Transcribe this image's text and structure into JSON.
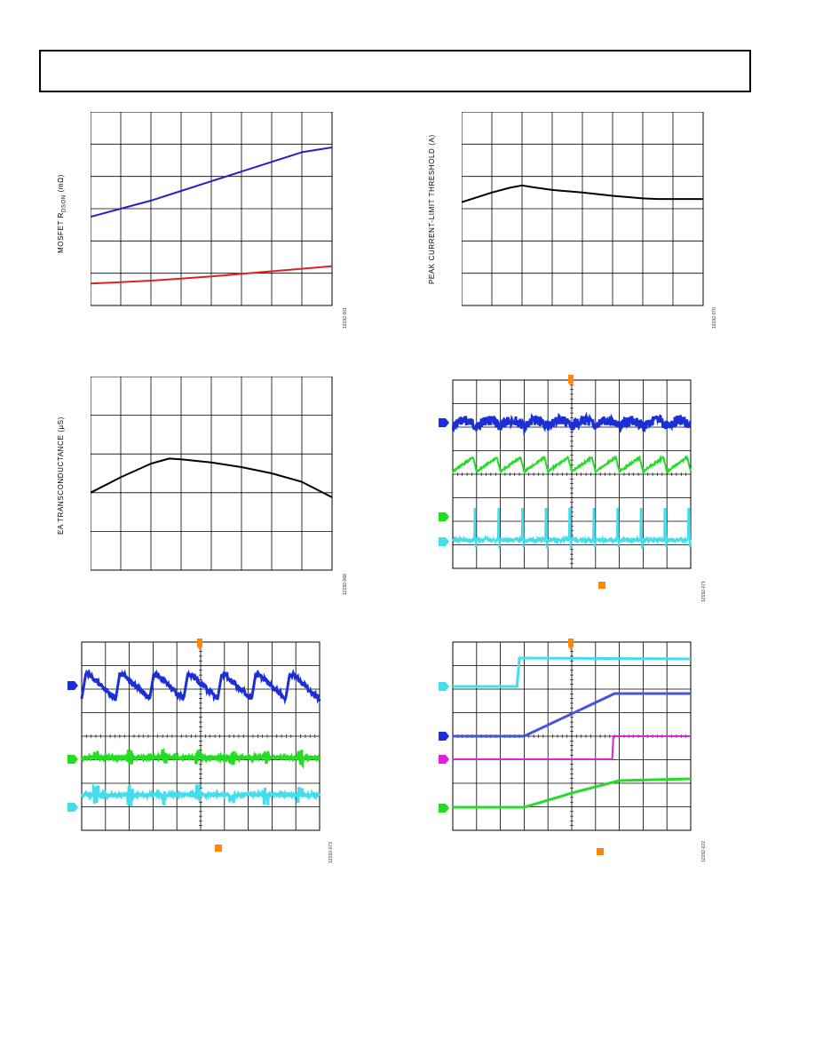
{
  "colors": {
    "blue": "#2222cc",
    "red": "#dd2222",
    "black": "#000000",
    "green": "#22dd22",
    "cyan": "#44ddee",
    "magenta": "#dd22dd",
    "orange": "#ff8800",
    "osc_blue": "#1a2fd6",
    "osc_blue2": "#4455dd"
  },
  "figures": {
    "rdson_ylabel_main": "MOSFET R",
    "rdson_ylabel_sub": "DSON",
    "rdson_ylabel_unit": " (mΩ)",
    "rdson_figid": "12192-001",
    "ilim_ylabel": "PEAK CURRENT-LIMIT THRESHOLD (A)",
    "ilim_figid": "12192-070",
    "gm_ylabel": "EA TRANSCONDUCTANCE (µS)",
    "gm_figid": "12192-068",
    "scope1_figid": "12192-071",
    "scope2_figid": "12192-073",
    "scope3_figid": "12192-072"
  },
  "chart_data": [
    {
      "type": "line",
      "name": "rdson",
      "xlim": [
        0,
        8
      ],
      "ylim": [
        0,
        6
      ],
      "grid": true,
      "series": [
        {
          "color": "blue",
          "x": [
            0,
            1,
            2,
            3,
            4,
            5,
            6,
            7,
            8
          ],
          "y": [
            2.75,
            3.0,
            3.25,
            3.55,
            3.85,
            4.15,
            4.45,
            4.75,
            4.9
          ]
        },
        {
          "color": "red",
          "x": [
            0,
            1,
            2,
            3,
            4,
            5,
            6,
            7,
            8
          ],
          "y": [
            0.68,
            0.72,
            0.77,
            0.83,
            0.9,
            0.98,
            1.06,
            1.14,
            1.22
          ]
        }
      ]
    },
    {
      "type": "line",
      "name": "ilim",
      "xlim": [
        0,
        8
      ],
      "ylim": [
        0,
        6
      ],
      "grid": true,
      "series": [
        {
          "color": "black",
          "x": [
            0,
            1,
            1.6,
            2,
            2.4,
            3,
            4,
            5,
            6,
            6.5,
            7,
            8
          ],
          "y": [
            3.2,
            3.5,
            3.65,
            3.72,
            3.66,
            3.58,
            3.5,
            3.4,
            3.32,
            3.3,
            3.3,
            3.3
          ]
        }
      ]
    },
    {
      "type": "line",
      "name": "gm",
      "xlim": [
        0,
        8
      ],
      "ylim": [
        0,
        5
      ],
      "grid": true,
      "series": [
        {
          "color": "black",
          "x": [
            0,
            1,
            2,
            2.6,
            3,
            4,
            5,
            6,
            7,
            8
          ],
          "y": [
            2.0,
            2.4,
            2.75,
            2.88,
            2.86,
            2.78,
            2.66,
            2.5,
            2.28,
            1.88
          ]
        }
      ]
    },
    {
      "type": "scope",
      "name": "scope1",
      "grid": true,
      "traces": [
        {
          "color": "osc_blue",
          "shape": "ripple-ac",
          "periods": 10
        },
        {
          "color": "green",
          "shape": "sawtooth-up",
          "periods": 10
        },
        {
          "color": "cyan",
          "shape": "pulse-train",
          "periods": 10
        }
      ]
    },
    {
      "type": "scope",
      "name": "scope2",
      "grid": true,
      "traces": [
        {
          "color": "osc_blue",
          "shape": "sawtooth-down",
          "periods": 7
        },
        {
          "color": "green",
          "shape": "burst",
          "periods": 7
        },
        {
          "color": "cyan",
          "shape": "burst",
          "periods": 7
        }
      ]
    },
    {
      "type": "scope",
      "name": "scope3",
      "grid": true,
      "traces": [
        {
          "color": "cyan",
          "shape": "step"
        },
        {
          "color": "osc_blue2",
          "shape": "ramp"
        },
        {
          "color": "magenta",
          "shape": "step-late"
        },
        {
          "color": "green",
          "shape": "ramp-soft"
        }
      ]
    }
  ]
}
